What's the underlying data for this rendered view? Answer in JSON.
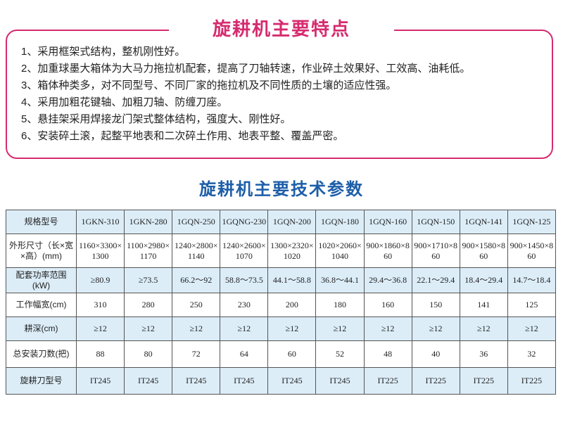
{
  "features": {
    "title": "旋耕机主要特点",
    "items": [
      "1、采用框架式结构，整机刚性好。",
      "2、加重球墨大箱体为大马力拖拉机配套，提高了刀轴转速，作业碎土效果好、工效高、油耗低。",
      "3、箱体种类多，对不同型号、不同厂家的拖拉机及不同性质的土壤的适应性强。",
      "4、采用加粗花键轴、加粗刀轴、防缠刀座。",
      "5、悬挂架采用焊接龙门架式整体结构，强度大、刚性好。",
      "6、安装碎土滚，起整平地表和二次碎土作用、地表平整、覆盖严密。"
    ]
  },
  "specs": {
    "title": "旋耕机主要技术参数",
    "rows": [
      {
        "label": "规格型号",
        "values": [
          "1GKN-310",
          "1GKN-280",
          "1GQN-250",
          "1GQNG-230",
          "1GQN-200",
          "1GQN-180",
          "1GQN-160",
          "1GQN-150",
          "1GQN-141",
          "1GQN-125"
        ]
      },
      {
        "label": "外形尺寸（长×宽×高）(mm)",
        "values": [
          "1160×3300×1300",
          "1100×2980×1170",
          "1240×2800×1140",
          "1240×2600×1070",
          "1300×2320×1020",
          "1020×2060×1040",
          "900×1860×860",
          "900×1710×860",
          "900×1580×860",
          "900×1450×860"
        ]
      },
      {
        "label": "配套功率范围(kW)",
        "values": [
          "≥80.9",
          "≥73.5",
          "66.2～92",
          "58.8～73.5",
          "44.1～58.8",
          "36.8～44.1",
          "29.4～36.8",
          "22.1～29.4",
          "18.4～29.4",
          "14.7～18.4"
        ]
      },
      {
        "label": "工作幅宽(cm)",
        "values": [
          "310",
          "280",
          "250",
          "230",
          "200",
          "180",
          "160",
          "150",
          "141",
          "125"
        ]
      },
      {
        "label": "耕深(cm)",
        "values": [
          "≥12",
          "≥12",
          "≥12",
          "≥12",
          "≥12",
          "≥12",
          "≥12",
          "≥12",
          "≥12",
          "≥12"
        ]
      },
      {
        "label": "总安装刀数(把)",
        "values": [
          "88",
          "80",
          "72",
          "64",
          "60",
          "52",
          "48",
          "40",
          "36",
          "32"
        ]
      },
      {
        "label": "旋耕刀型号",
        "values": [
          "IT245",
          "IT245",
          "IT245",
          "IT245",
          "IT245",
          "IT245",
          "IT225",
          "IT225",
          "IT225",
          "IT225"
        ]
      }
    ]
  },
  "colors": {
    "pink": "#d62b6f",
    "blue_title": "#1d5ea8",
    "cell_blue": "#dcedf8"
  }
}
